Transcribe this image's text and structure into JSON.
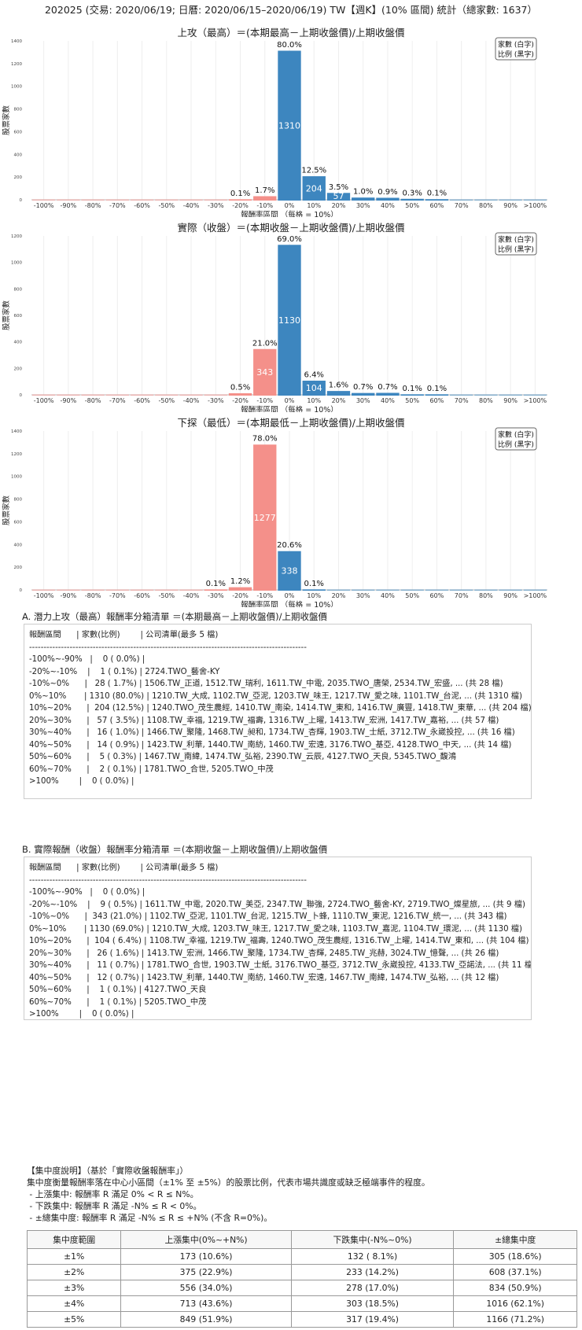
{
  "title": "202025 (交易: 2020/06/19; 日曆: 2020/06/15–2020/06/19) TW【週K】(10% 區間) 統計（總家數: 1637）",
  "legend": {
    "line1": "家數 (白字)",
    "line2": "比例 (黑字)"
  },
  "colors": {
    "positive": "#3d86bf",
    "negative": "#f4908a",
    "grid": "#eeeeee"
  },
  "chart_data": [
    {
      "type": "bar",
      "title": "上攻（最高）＝(本期最高－上期收盤價)/上期收盤價",
      "xlabel": "報酬率區間 （每格 = 10%）",
      "ylabel": "股票家數",
      "categories": [
        "-100%",
        "-90%",
        "-80%",
        "-70%",
        "-60%",
        "-50%",
        "-40%",
        "-30%",
        "-20%",
        "-10%",
        "0%",
        "10%",
        "20%",
        "30%",
        "40%",
        "50%",
        "60%",
        "70%",
        "80%",
        "90%",
        ">100%"
      ],
      "values": [
        0,
        0,
        0,
        0,
        0,
        0,
        0,
        0,
        1,
        28,
        1310,
        204,
        57,
        16,
        14,
        5,
        2,
        0,
        0,
        0,
        0
      ],
      "labels": [
        "",
        "",
        "",
        "",
        "",
        "",
        "",
        "",
        "0.1%",
        "1.7%",
        "80.0%",
        "12.5%",
        "3.5%",
        "1.0%",
        "0.9%",
        "0.3%",
        "0.1%",
        "",
        "",
        "",
        ""
      ],
      "ylim": [
        0,
        1400
      ],
      "yticks": [
        0,
        200,
        400,
        600,
        800,
        1000,
        1200,
        1400
      ]
    },
    {
      "type": "bar",
      "title": "實際（收盤）＝(本期收盤－上期收盤價)/上期收盤價",
      "xlabel": "報酬率區間 （每格 = 10%）",
      "ylabel": "股票家數",
      "categories": [
        "-100%",
        "-90%",
        "-80%",
        "-70%",
        "-60%",
        "-50%",
        "-40%",
        "-30%",
        "-20%",
        "-10%",
        "0%",
        "10%",
        "20%",
        "30%",
        "40%",
        "50%",
        "60%",
        "70%",
        "80%",
        "90%",
        ">100%"
      ],
      "values": [
        0,
        0,
        0,
        0,
        0,
        0,
        0,
        0,
        9,
        343,
        1130,
        104,
        26,
        11,
        12,
        1,
        1,
        0,
        0,
        0,
        0
      ],
      "labels": [
        "",
        "",
        "",
        "",
        "",
        "",
        "",
        "",
        "0.5%",
        "21.0%",
        "69.0%",
        "6.4%",
        "1.6%",
        "0.7%",
        "0.7%",
        "0.1%",
        "0.1%",
        "",
        "",
        "",
        ""
      ],
      "ylim": [
        0,
        1200
      ],
      "yticks": [
        0,
        200,
        400,
        600,
        800,
        1000,
        1200
      ]
    },
    {
      "type": "bar",
      "title": "下探（最低）＝(本期最低－上期收盤價)/上期收盤價",
      "xlabel": "報酬率區間 （每格 = 10%）",
      "ylabel": "股票家數",
      "categories": [
        "-100%",
        "-90%",
        "-80%",
        "-70%",
        "-60%",
        "-50%",
        "-40%",
        "-30%",
        "-20%",
        "-10%",
        "0%",
        "10%",
        "20%",
        "30%",
        "40%",
        "50%",
        "60%",
        "70%",
        "80%",
        "90%",
        ">100%"
      ],
      "values": [
        0,
        0,
        0,
        0,
        0,
        0,
        0,
        1,
        20,
        1277,
        338,
        1,
        0,
        0,
        0,
        0,
        0,
        0,
        0,
        0,
        0
      ],
      "labels": [
        "",
        "",
        "",
        "",
        "",
        "",
        "",
        "0.1%",
        "1.2%",
        "78.0%",
        "20.6%",
        "0.1%",
        "",
        "",
        "",
        "",
        "",
        "",
        "",
        "",
        ""
      ],
      "ylim": [
        0,
        1400
      ],
      "yticks": [
        0,
        200,
        400,
        600,
        800,
        1000,
        1200,
        1400
      ]
    }
  ],
  "listA": {
    "title": "A. 潛力上攻（最高）報酬率分箱清單 ＝(本期最高－上期收盤價)/上期收盤價",
    "lines": [
      "報酬區間      | 家數(比例)        | 公司清單(最多 5 檔)",
      "------------------------------------------------------------------------------------------------",
      "-100%~-90%   |    0 ( 0.0%) |",
      "-20%~-10%    |    1 ( 0.1%) | 2724.TWO_藝舍-KY",
      "-10%~0%      |   28 ( 1.7%) | 1506.TW_正道, 1512.TW_瑞利, 1611.TW_中電, 2035.TWO_唐榮, 2534.TW_宏盛, ... (共 28 檔)",
      "0%~10%       | 1310 (80.0%) | 1210.TW_大成, 1102.TW_亞泥, 1203.TW_味王, 1217.TW_愛之味, 1101.TW_台泥, ... (共 1310 檔)",
      "10%~20%      |  204 (12.5%) | 1240.TWO_茂生農經, 1410.TW_南染, 1414.TW_東和, 1416.TW_廣豐, 1418.TW_東華, ... (共 204 檔)",
      "20%~30%      |   57 ( 3.5%) | 1108.TW_幸福, 1219.TW_福壽, 1316.TW_上曜, 1413.TW_宏洲, 1417.TW_嘉裕, ... (共 57 檔)",
      "30%~40%      |   16 ( 1.0%) | 1466.TW_聚隆, 1468.TW_昶和, 1734.TW_杏輝, 1903.TW_士紙, 3712.TW_永崴投控, ... (共 16 檔)",
      "40%~50%      |   14 ( 0.9%) | 1423.TW_利華, 1440.TW_南紡, 1460.TW_宏遠, 3176.TWO_基亞, 4128.TWO_中天, ... (共 14 檔)",
      "50%~60%      |    5 ( 0.3%) | 1467.TW_南緯, 1474.TW_弘裕, 2390.TW_云辰, 4127.TWO_天良, 5345.TWO_馥鴻",
      "60%~70%      |    2 ( 0.1%) | 1781.TWO_合世, 5205.TWO_中茂",
      ">100%        |    0 ( 0.0%) |"
    ]
  },
  "listB": {
    "title": "B. 實際報酬（收盤）報酬率分箱清單 ＝(本期收盤－上期收盤價)/上期收盤價",
    "lines": [
      "報酬區間      | 家數(比例)        | 公司清單(最多 5 檔)",
      "------------------------------------------------------------------------------------------------",
      "-100%~-90%   |    0 ( 0.0%) |",
      "-20%~-10%    |    9 ( 0.5%) | 1611.TW_中電, 2020.TW_美亞, 2347.TW_聯強, 2724.TWO_藝舍-KY, 2719.TWO_燦星旅, ... (共 9 檔)",
      "-10%~0%      |  343 (21.0%) | 1102.TW_亞泥, 1101.TW_台泥, 1215.TW_卜蜂, 1110.TW_東泥, 1216.TW_統一, ... (共 343 檔)",
      "0%~10%       | 1130 (69.0%) | 1210.TW_大成, 1203.TW_味王, 1217.TW_愛之味, 1103.TW_嘉泥, 1104.TW_環泥, ... (共 1130 檔)",
      "10%~20%      |  104 ( 6.4%) | 1108.TW_幸福, 1219.TW_福壽, 1240.TWO_茂生農經, 1316.TW_上曜, 1414.TW_東和, ... (共 104 檔)",
      "20%~30%      |   26 ( 1.6%) | 1413.TW_宏洲, 1466.TW_聚隆, 1734.TW_杏輝, 2485.TW_兆赫, 3024.TW_憶聲, ... (共 26 檔)",
      "30%~40%      |   11 ( 0.7%) | 1781.TWO_合世, 1903.TW_士紙, 3176.TWO_基亞, 3712.TW_永崴投控, 4133.TW_亞諾法, ... (共 11 檔)",
      "40%~50%      |   12 ( 0.7%) | 1423.TW_利華, 1440.TW_南紡, 1460.TW_宏遠, 1467.TW_南緯, 1474.TW_弘裕, ... (共 12 檔)",
      "50%~60%      |    1 ( 0.1%) | 4127.TWO_天良",
      "60%~70%      |    1 ( 0.1%) | 5205.TWO_中茂",
      ">100%        |    0 ( 0.0%) |"
    ]
  },
  "explanation": {
    "lines": [
      "【集中度說明】（基於「實際收盤報酬率」）",
      "集中度衡量報酬率落在中心小區間（±1% 至 ±5%）的股票比例，代表市場共識度或缺乏極端事件的程度。",
      " - 上漲集中: 報酬率 R 滿足 0% < R ≤ N%。",
      " - 下跌集中: 報酬率 R 滿足 -N% ≤ R < 0%。",
      " - ±總集中度: 報酬率 R 滿足 -N% ≤ R ≤ +N% (不含 R=0%)。"
    ]
  },
  "concentration": {
    "headers": [
      "集中度範圍",
      "上漲集中(0%~+N%)",
      "下跌集中(-N%~0%)",
      "±總集中度"
    ],
    "rows": [
      [
        "±1%",
        "173 (10.6%)",
        "132 ( 8.1%)",
        "305 (18.6%)"
      ],
      [
        "±2%",
        "375 (22.9%)",
        "233 (14.2%)",
        "608 (37.1%)"
      ],
      [
        "±3%",
        "556 (34.0%)",
        "278 (17.0%)",
        "834 (50.9%)"
      ],
      [
        "±4%",
        "713 (43.6%)",
        "303 (18.5%)",
        "1016 (62.1%)"
      ],
      [
        "±5%",
        "849 (51.9%)",
        "317 (19.4%)",
        "1166 (71.2%)"
      ]
    ]
  }
}
